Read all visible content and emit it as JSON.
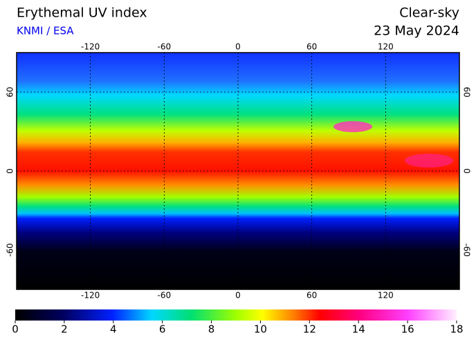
{
  "header": {
    "title": "Erythemal UV index",
    "source": "KNMI / ESA",
    "condition": "Clear-sky",
    "date": "23 May 2024"
  },
  "map": {
    "xlim": [
      -180,
      180
    ],
    "ylim": [
      -90,
      90
    ],
    "xticks": [
      -120,
      -60,
      0,
      60,
      120
    ],
    "yticks": [
      -60,
      0,
      60
    ],
    "grid": true
  },
  "colorbar": {
    "lim": [
      0,
      18
    ],
    "ticks": [
      0,
      2,
      4,
      6,
      8,
      10,
      12,
      14,
      16,
      18
    ]
  }
}
